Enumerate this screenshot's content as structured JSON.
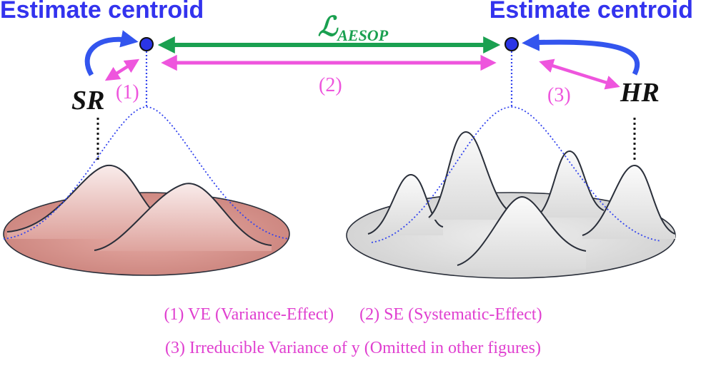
{
  "left_title": "Estimate centroid",
  "right_title": "Estimate centroid",
  "loss_label": "ℒ",
  "loss_subscript": "AESOP",
  "left_model_label": "SR",
  "right_model_label": "HR",
  "arrow_labels": [
    "(1)",
    "(2)",
    "(3)"
  ],
  "legend": {
    "item1": "(1) VE (Variance-Effect)",
    "item2": "(2) SE (Systematic-Effect)",
    "item3": "(3) Irreducible Variance of y (Omitted in other figures)"
  },
  "colors": {
    "title_blue": "#3333ee",
    "loss_green": "#1aa050",
    "magenta": "#ee55dd",
    "blue_arrow": "#3355ee",
    "left_disk": "#d08a84",
    "right_disk": "#d9d9d9"
  }
}
